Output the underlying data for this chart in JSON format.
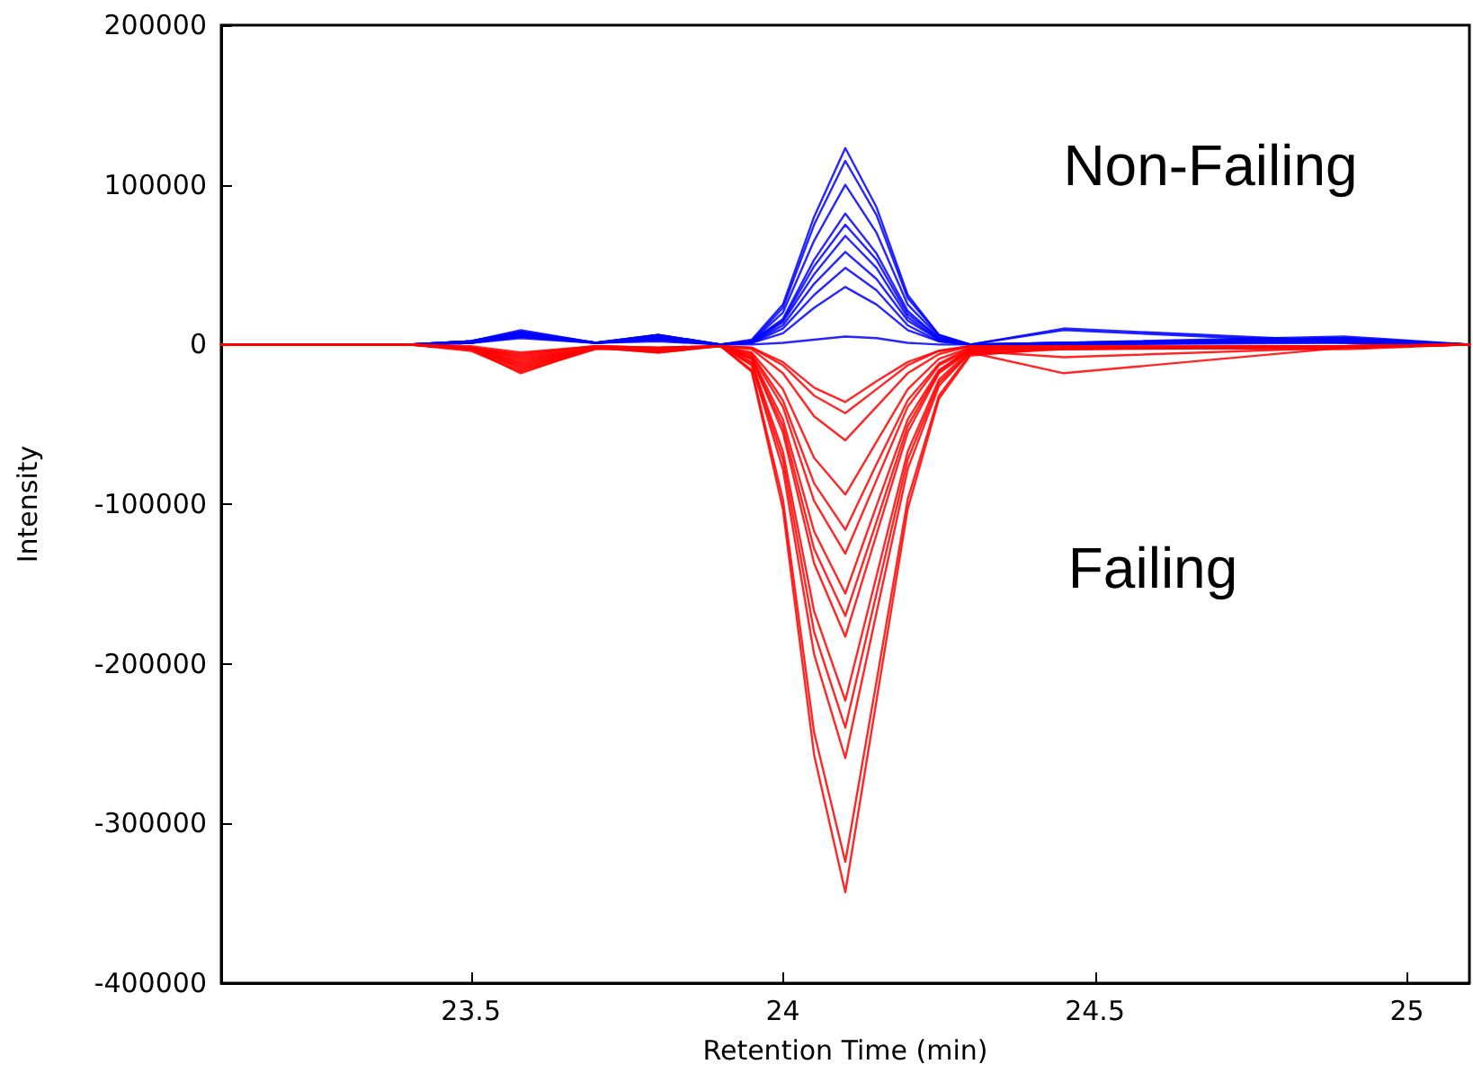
{
  "chart_data": {
    "type": "line",
    "xlabel": "Retention Time (min)",
    "ylabel": "Intensity",
    "x": [
      23.1,
      23.4,
      23.5,
      23.58,
      23.7,
      23.8,
      23.9,
      23.95,
      24.0,
      24.05,
      24.1,
      24.15,
      24.2,
      24.25,
      24.3,
      24.45,
      24.9,
      25.1
    ],
    "xlim": [
      23.1,
      25.1
    ],
    "xticks": [
      23.5,
      24.0,
      24.5,
      25.0
    ],
    "ylim": [
      -400000,
      200000
    ],
    "yticks": [
      -400000,
      -300000,
      -200000,
      -100000,
      0,
      100000,
      200000
    ],
    "grid": false,
    "marker": "none",
    "line_style": "solid",
    "annotations": [
      "Non-Failing",
      "Failing"
    ],
    "series": [
      {
        "color": "#0000ff",
        "values": [
          0,
          0,
          2000,
          8000,
          1000,
          6000,
          0,
          3000,
          25000,
          80000,
          123000,
          86000,
          31000,
          6000,
          0,
          1000,
          4000,
          0
        ]
      },
      {
        "color": "#0000ff",
        "values": [
          0,
          0,
          2000,
          7000,
          1000,
          5000,
          0,
          2000,
          23000,
          75000,
          115000,
          81000,
          29000,
          6000,
          0,
          10000,
          2000,
          0
        ]
      },
      {
        "color": "#0000ff",
        "values": [
          0,
          0,
          1000,
          6000,
          1000,
          4000,
          0,
          2000,
          20000,
          65000,
          100000,
          70000,
          25000,
          5000,
          0,
          1000,
          5000,
          0
        ]
      },
      {
        "color": "#0000ff",
        "values": [
          0,
          0,
          2000,
          9000,
          1000,
          6000,
          0,
          2000,
          16000,
          53000,
          82000,
          57000,
          21000,
          4000,
          0,
          0,
          3000,
          0
        ]
      },
      {
        "color": "#0000ff",
        "values": [
          0,
          0,
          1000,
          5000,
          1000,
          3000,
          0,
          2000,
          15000,
          49000,
          75000,
          53000,
          19000,
          4000,
          0,
          9000,
          1000,
          0
        ]
      },
      {
        "color": "#0000ff",
        "values": [
          0,
          0,
          2000,
          7000,
          1000,
          5000,
          0,
          1000,
          14000,
          44000,
          68000,
          48000,
          17000,
          3000,
          0,
          0,
          2000,
          0
        ]
      },
      {
        "color": "#0000ff",
        "values": [
          0,
          0,
          1000,
          6000,
          1000,
          4000,
          0,
          1000,
          12000,
          38000,
          58000,
          41000,
          15000,
          3000,
          0,
          1000,
          3000,
          0
        ]
      },
      {
        "color": "#0000ff",
        "values": [
          0,
          0,
          2000,
          8000,
          1000,
          6000,
          0,
          1000,
          10000,
          31000,
          48000,
          34000,
          12000,
          2000,
          0,
          0,
          4000,
          0
        ]
      },
      {
        "color": "#0000ff",
        "values": [
          0,
          0,
          1000,
          5000,
          1000,
          3000,
          0,
          1000,
          7000,
          23000,
          36000,
          25000,
          9000,
          2000,
          0,
          1000,
          2000,
          0
        ]
      },
      {
        "color": "#0000ff",
        "values": [
          0,
          0,
          1000,
          4000,
          1000,
          2000,
          0,
          0,
          1000,
          3000,
          5000,
          4000,
          1000,
          0,
          0,
          0,
          1000,
          0
        ]
      },
      {
        "color": "#ff0000",
        "values": [
          0,
          0,
          -3000,
          -18000,
          -2000,
          -4000,
          -1000,
          -17000,
          -103000,
          -257000,
          -343000,
          -223000,
          -103000,
          -34000,
          -7000,
          -2000,
          -2000,
          0
        ]
      },
      {
        "color": "#ff0000",
        "values": [
          0,
          0,
          -4000,
          -17000,
          -3000,
          -3000,
          -1000,
          -16000,
          -97000,
          -243000,
          -324000,
          -211000,
          -97000,
          -32000,
          -6000,
          -3000,
          -1000,
          0
        ]
      },
      {
        "color": "#ff0000",
        "values": [
          0,
          0,
          -3000,
          -16000,
          -2000,
          -5000,
          -1000,
          -13000,
          -78000,
          -194000,
          -259000,
          -168000,
          -78000,
          -26000,
          -5000,
          -18000,
          -2000,
          0
        ]
      },
      {
        "color": "#ff0000",
        "values": [
          0,
          0,
          -2000,
          -15000,
          -2000,
          -3000,
          -1000,
          -12000,
          -72000,
          -180000,
          -240000,
          -156000,
          -72000,
          -24000,
          -5000,
          -2000,
          -3000,
          0
        ]
      },
      {
        "color": "#ff0000",
        "values": [
          0,
          0,
          -3000,
          -14000,
          -2000,
          -4000,
          -1000,
          -11000,
          -67000,
          -167000,
          -223000,
          -145000,
          -67000,
          -22000,
          -4000,
          -8000,
          -2000,
          0
        ]
      },
      {
        "color": "#ff0000",
        "values": [
          0,
          0,
          -2000,
          -12000,
          -2000,
          -3000,
          -1000,
          -9000,
          -55000,
          -137000,
          -183000,
          -119000,
          -55000,
          -18000,
          -4000,
          -2000,
          -1000,
          0
        ]
      },
      {
        "color": "#ff0000",
        "values": [
          0,
          0,
          -3000,
          -13000,
          -2000,
          -5000,
          -1000,
          -9000,
          -51000,
          -128000,
          -170000,
          -111000,
          -51000,
          -17000,
          -3000,
          -3000,
          -2000,
          0
        ]
      },
      {
        "color": "#ff0000",
        "values": [
          0,
          0,
          -2000,
          -10000,
          -2000,
          -3000,
          -1000,
          -8000,
          -47000,
          -117000,
          -156000,
          -101000,
          -47000,
          -16000,
          -3000,
          -2000,
          -2000,
          0
        ]
      },
      {
        "color": "#ff0000",
        "values": [
          0,
          0,
          -3000,
          -11000,
          -2000,
          -4000,
          -1000,
          -7000,
          -39000,
          -98000,
          -131000,
          -85000,
          -39000,
          -13000,
          -3000,
          -3000,
          -1000,
          0
        ]
      },
      {
        "color": "#ff0000",
        "values": [
          0,
          0,
          -2000,
          -9000,
          -2000,
          -3000,
          -1000,
          -6000,
          -35000,
          -87000,
          -116000,
          -75000,
          -35000,
          -12000,
          -2000,
          -2000,
          -2000,
          0
        ]
      },
      {
        "color": "#ff0000",
        "values": [
          0,
          0,
          -2000,
          -8000,
          -2000,
          -3000,
          -1000,
          -5000,
          -28000,
          -71000,
          -94000,
          -61000,
          -28000,
          -9000,
          -2000,
          -2000,
          -1000,
          0
        ]
      },
      {
        "color": "#ff0000",
        "values": [
          0,
          0,
          -2000,
          -7000,
          -1000,
          -2000,
          -1000,
          -3000,
          -18000,
          -45000,
          -60000,
          -39000,
          -18000,
          -6000,
          -1000,
          -1000,
          -2000,
          0
        ]
      },
      {
        "color": "#ff0000",
        "values": [
          0,
          0,
          -2000,
          -6000,
          -1000,
          -2000,
          -1000,
          -2000,
          -13000,
          -32000,
          -43000,
          -28000,
          -13000,
          -4000,
          -1000,
          -2000,
          -1000,
          0
        ]
      },
      {
        "color": "#ff0000",
        "values": [
          0,
          0,
          -1000,
          -5000,
          -1000,
          -2000,
          -1000,
          -2000,
          -11000,
          -27000,
          -36000,
          -23000,
          -11000,
          -4000,
          -1000,
          -1000,
          -1000,
          0
        ]
      }
    ]
  }
}
